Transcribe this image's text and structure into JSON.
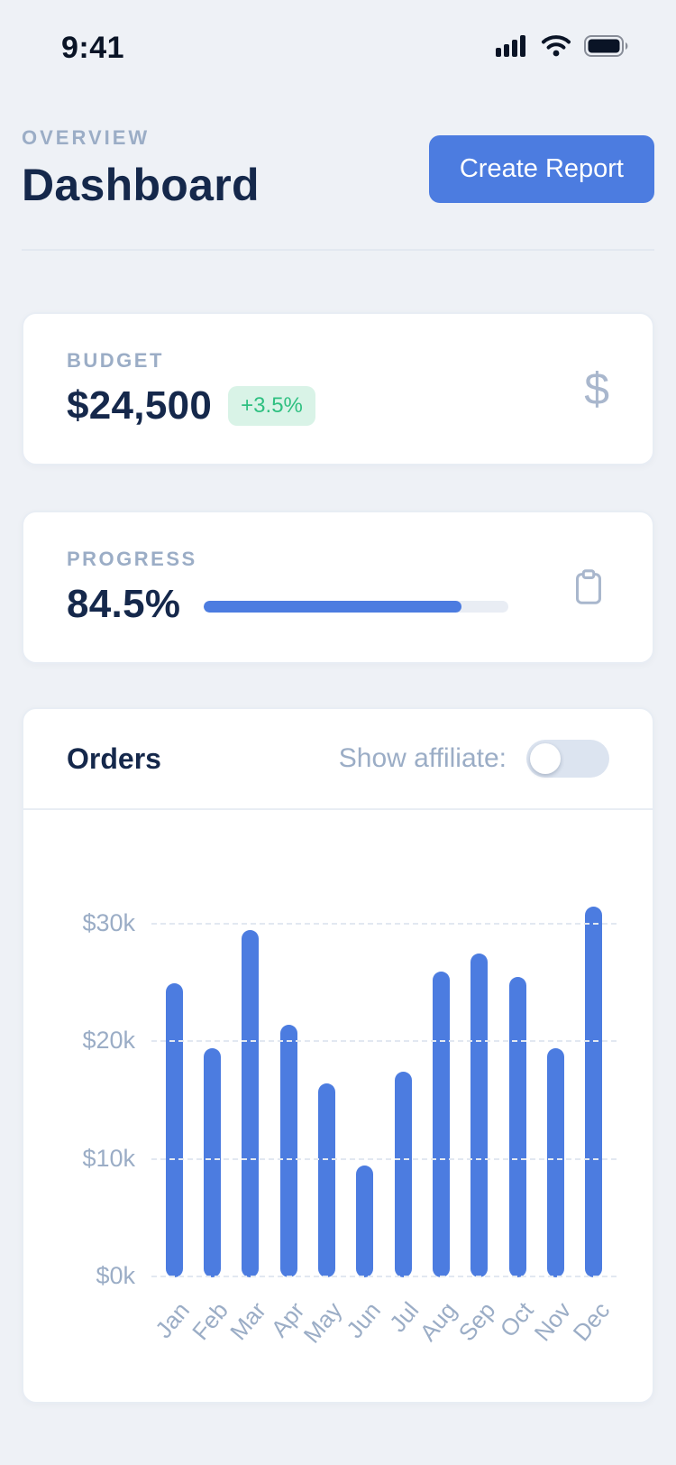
{
  "colors": {
    "background": "#eef1f6",
    "accent_blue": "#4c7ce0",
    "dark_navy": "#15284b",
    "muted_label": "#9badc6",
    "positive_green": "#2fc081",
    "positive_green_bg": "#d9f3e7",
    "card_border": "#e8edf4"
  },
  "status_bar": {
    "time": "9:41"
  },
  "header": {
    "eyebrow": "OVERVIEW",
    "title": "Dashboard",
    "create_report_label": "Create Report"
  },
  "budget_card": {
    "label": "BUDGET",
    "value": "$24,500",
    "delta": "+3.5%",
    "icon": "dollar-icon"
  },
  "progress_card": {
    "label": "PROGRESS",
    "value": "84.5%",
    "progress_pct": 84.5,
    "icon": "clipboard-icon"
  },
  "orders_card": {
    "title": "Orders",
    "toggle_label": "Show affiliate:",
    "toggle_on": false
  },
  "chart_data": {
    "type": "bar",
    "title": "Orders",
    "categories": [
      "Jan",
      "Feb",
      "Mar",
      "Apr",
      "May",
      "Jun",
      "Jul",
      "Aug",
      "Sep",
      "Oct",
      "Nov",
      "Dec"
    ],
    "values": [
      25000,
      19500,
      29500,
      21500,
      16500,
      9500,
      17500,
      26000,
      27500,
      25500,
      19500,
      31500
    ],
    "xlabel": "",
    "ylabel": "",
    "ylim": [
      0,
      34500
    ],
    "yticks": [
      0,
      10000,
      20000,
      30000
    ],
    "ytick_labels": [
      "$0k",
      "$10k",
      "$20k",
      "$30k"
    ],
    "grid": "horizontal-dashed",
    "legend": "none",
    "bar_color": "#4c7ce0"
  }
}
